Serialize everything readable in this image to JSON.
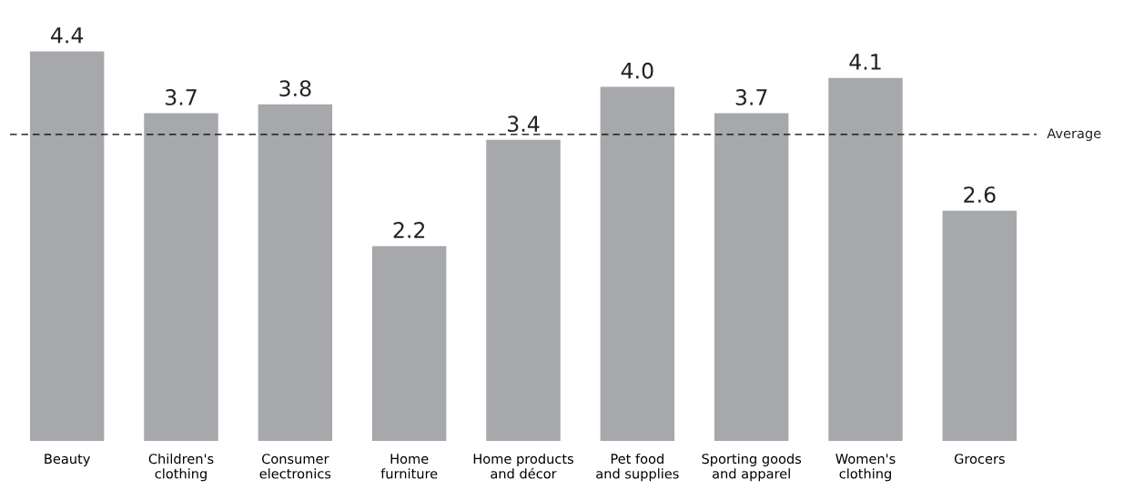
{
  "chart_data": {
    "type": "bar",
    "categories": [
      "Beauty",
      "Children's\nclothing",
      "Consumer\nelectronics",
      "Home\nfurniture",
      "Home products\nand décor",
      "Pet food\nand supplies",
      "Sporting goods\nand apparel",
      "Women's\nclothing",
      "Grocers"
    ],
    "values": [
      4.4,
      3.7,
      3.8,
      2.2,
      3.4,
      4.0,
      3.7,
      4.1,
      2.6
    ],
    "color": "#a7a8ab",
    "data_labels": true,
    "value_labels": [
      "4.4",
      "3.7",
      "3.8",
      "2.2",
      "3.4",
      "4.0",
      "3.7",
      "4.1",
      "2.6"
    ],
    "tick_labels": "x",
    "grid": false,
    "ref_lines": [
      {
        "axis": "y",
        "value": 3.46,
        "label": "Average",
        "color": "#000000",
        "line_style": "dashed"
      }
    ]
  }
}
